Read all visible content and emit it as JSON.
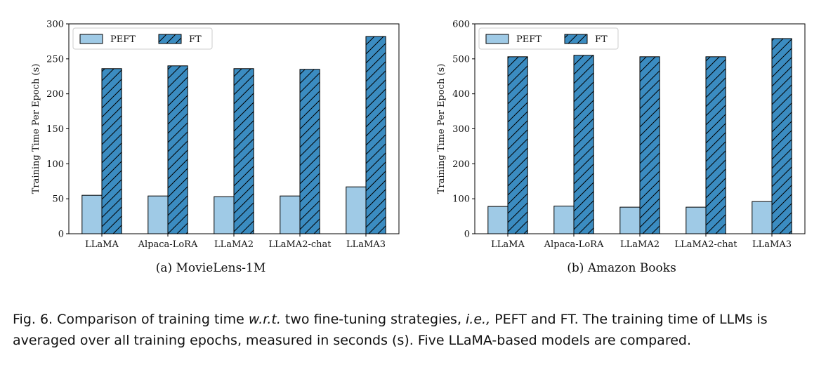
{
  "colors": {
    "peft": "#9fcae6",
    "ft": "#3b8cc1",
    "stroke": "#000000"
  },
  "chart_data": [
    {
      "type": "bar",
      "subtitle": "(a)  MovieLens-1M",
      "ylabel": "Training Time Per Epoch (s)",
      "ylim": [
        0,
        300
      ],
      "yticks": [
        0,
        50,
        100,
        150,
        200,
        250,
        300
      ],
      "categories": [
        "LLaMA",
        "Alpaca-LoRA",
        "LLaMA2",
        "LLaMA2-chat",
        "LLaMA3"
      ],
      "series": [
        {
          "name": "PEFT",
          "values": [
            55,
            54,
            53,
            54,
            67
          ]
        },
        {
          "name": "FT",
          "values": [
            236,
            240,
            236,
            235,
            282
          ]
        }
      ],
      "legend": "top-left",
      "grid": false
    },
    {
      "type": "bar",
      "subtitle": "(b)  Amazon Books",
      "ylabel": "Training Time Per Epoch (s)",
      "ylim": [
        0,
        600
      ],
      "yticks": [
        0,
        100,
        200,
        300,
        400,
        500,
        600
      ],
      "categories": [
        "LLaMA",
        "Alpaca-LoRA",
        "LLaMA2",
        "LLaMA2-chat",
        "LLaMA3"
      ],
      "series": [
        {
          "name": "PEFT",
          "values": [
            78,
            79,
            76,
            76,
            92
          ]
        },
        {
          "name": "FT",
          "values": [
            506,
            510,
            506,
            506,
            558
          ]
        }
      ],
      "legend": "top-left",
      "grid": false
    }
  ],
  "caption": {
    "prefix": "Fig. 6.",
    "p1": "Comparison of training time ",
    "em1": "w.r.t.",
    "p2": " two fine-tuning strategies, ",
    "em2": "i.e.,",
    "p3": " PEFT and FT. The training time of LLMs is averaged over all training epochs, measured in seconds (s). Five LLaMA-based models are compared."
  }
}
